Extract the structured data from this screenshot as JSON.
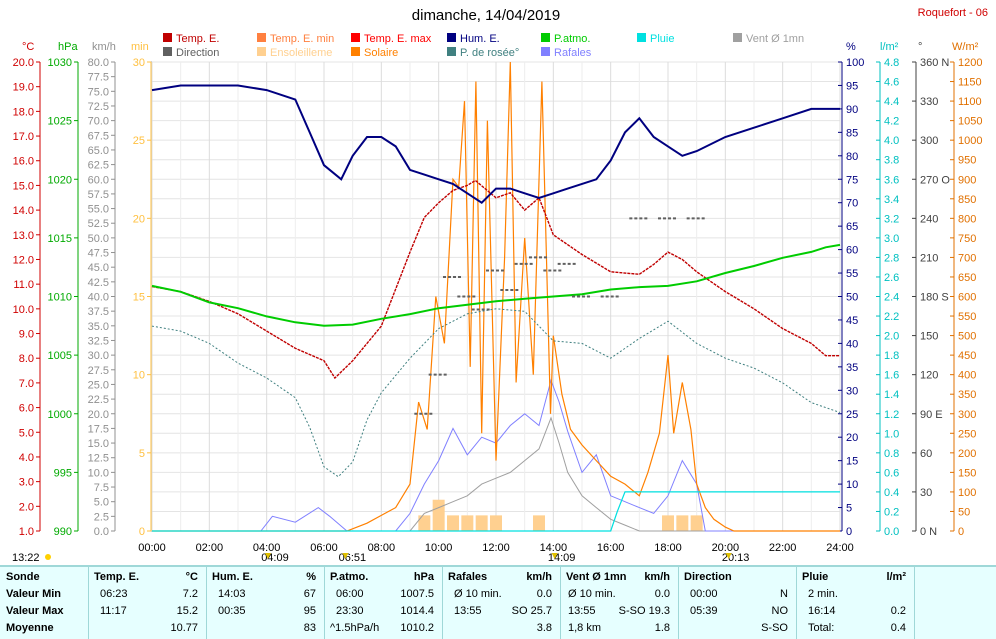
{
  "header": {
    "title": "dimanche, 14/04/2019",
    "station": "Roquefort - 06"
  },
  "legend": [
    {
      "label": "Temp. E.",
      "color": "#c00000",
      "col": 0,
      "row": 0
    },
    {
      "label": "Temp. E. min",
      "color": "#ff8040",
      "col": 1,
      "row": 0
    },
    {
      "label": "Temp. E. max",
      "color": "#ff0000",
      "col": 2,
      "row": 0
    },
    {
      "label": "Hum. E.",
      "color": "#000080",
      "col": 3,
      "row": 0
    },
    {
      "label": "P.atmo.",
      "color": "#00cc00",
      "col": 4,
      "row": 0
    },
    {
      "label": "Pluie",
      "color": "#00e0e0",
      "col": 5,
      "row": 0
    },
    {
      "label": "Vent Ø 1mn",
      "color": "#a0a0a0",
      "col": 6,
      "row": 0
    },
    {
      "label": "Direction",
      "color": "#606060",
      "col": 0,
      "row": 1
    },
    {
      "label": "Ensoleilleme",
      "color": "#ffd090",
      "col": 1,
      "row": 1
    },
    {
      "label": "Solaire",
      "color": "#ff8000",
      "col": 2,
      "row": 1
    },
    {
      "label": "P. de rosée°",
      "color": "#408080",
      "col": 3,
      "row": 1
    },
    {
      "label": "Rafales",
      "color": "#8080ff",
      "col": 4,
      "row": 1
    }
  ],
  "axes": {
    "celsius": {
      "unit": "°C",
      "ticks": [
        "20.0",
        "19.0",
        "18.0",
        "17.0",
        "16.0",
        "15.0",
        "14.0",
        "13.0",
        "12.0",
        "11.0",
        "10.0",
        "9.0",
        "8.0",
        "7.0",
        "6.0",
        "5.0",
        "4.0",
        "3.0",
        "2.0",
        "1.0"
      ],
      "color": "#d00000"
    },
    "hpa": {
      "unit": "hPa",
      "ticks": [
        "1030",
        "1025",
        "1020",
        "1015",
        "1010",
        "1005",
        "1000",
        "995",
        "990"
      ],
      "color": "#00aa00"
    },
    "kmh": {
      "unit": "km/h",
      "ticks": [
        "80.0",
        "77.5",
        "75.0",
        "72.5",
        "70.0",
        "67.5",
        "65.0",
        "62.5",
        "60.0",
        "57.5",
        "55.0",
        "52.5",
        "50.0",
        "47.5",
        "45.0",
        "42.5",
        "40.0",
        "37.5",
        "35.0",
        "32.5",
        "30.0",
        "27.5",
        "25.0",
        "22.5",
        "20.0",
        "17.5",
        "15.0",
        "12.5",
        "10.0",
        "7.5",
        "5.0",
        "2.5",
        "0.0"
      ],
      "color": "#909090"
    },
    "min": {
      "unit": "min",
      "ticks": [
        "30",
        "25",
        "20",
        "15",
        "10",
        "5",
        "0"
      ],
      "color": "#ffc040"
    },
    "percent": {
      "unit": "%",
      "ticks": [
        "100",
        "95",
        "90",
        "85",
        "80",
        "75",
        "70",
        "65",
        "60",
        "55",
        "50",
        "45",
        "40",
        "35",
        "30",
        "25",
        "20",
        "15",
        "10",
        "5",
        "0"
      ],
      "color": "#000080"
    },
    "rain": {
      "unit": "l/m²",
      "ticks": [
        "4.8",
        "4.6",
        "4.4",
        "4.2",
        "4.0",
        "3.8",
        "3.6",
        "3.4",
        "3.2",
        "3.0",
        "2.8",
        "2.6",
        "2.4",
        "2.2",
        "2.0",
        "1.8",
        "1.6",
        "1.4",
        "1.2",
        "1.0",
        "0.8",
        "0.6",
        "0.4",
        "0.2",
        "0.0"
      ],
      "color": "#00c0c0"
    },
    "direction": {
      "unit": "°",
      "ticks": [
        "360 N",
        "330",
        "300",
        "270 O",
        "240",
        "210",
        "180 S",
        "150",
        "120",
        "90 E",
        "60",
        "30",
        "0 N"
      ],
      "color": "#404040"
    },
    "solar": {
      "unit": "W/m²",
      "ticks": [
        "1200",
        "1150",
        "1100",
        "1050",
        "1000",
        "950",
        "900",
        "850",
        "800",
        "750",
        "700",
        "650",
        "600",
        "550",
        "500",
        "450",
        "400",
        "350",
        "300",
        "250",
        "200",
        "150",
        "100",
        "50",
        "0"
      ],
      "color": "#e07000"
    },
    "time": {
      "ticks": [
        "00:00",
        "02:00",
        "04:00",
        "06:00",
        "08:00",
        "10:00",
        "12:00",
        "14:00",
        "16:00",
        "18:00",
        "20:00",
        "22:00",
        "24:00"
      ]
    }
  },
  "sun": {
    "sunrise": "13:22",
    "moonset": "04:09",
    "dawn": "06:51",
    "solar_noon": "14:09",
    "sunset": "20:13"
  },
  "chart_data": {
    "type": "line",
    "title": "dimanche, 14/04/2019",
    "x_unit": "hours",
    "xlim": [
      0,
      24
    ],
    "series": [
      {
        "name": "Temp. E.",
        "unit": "°C",
        "color": "#c00000",
        "x": [
          0,
          1,
          2,
          3,
          4,
          5,
          6,
          6.38,
          7,
          8,
          9,
          9.5,
          10,
          10.5,
          11,
          11.28,
          12,
          12.5,
          13,
          13.5,
          14,
          14.5,
          15,
          16,
          17,
          17.5,
          18,
          18.5,
          19,
          20,
          21,
          22,
          23,
          23.5,
          24
        ],
        "y": [
          10.9,
          10.7,
          10.3,
          9.8,
          9.1,
          8.4,
          7.9,
          7.2,
          7.9,
          9.3,
          12.3,
          13.7,
          14.3,
          14.8,
          15.0,
          15.2,
          14.5,
          14.7,
          14.0,
          14.5,
          13.0,
          12.6,
          12.2,
          11.5,
          11.4,
          11.8,
          12.3,
          12.0,
          11.5,
          10.7,
          10.0,
          9.2,
          8.6,
          8.1,
          8.1
        ]
      },
      {
        "name": "Hum. E.",
        "unit": "%",
        "color": "#000080",
        "x": [
          0,
          1,
          2,
          3,
          4,
          5,
          5.5,
          6,
          6.6,
          7,
          7.5,
          8,
          8.5,
          9,
          9.5,
          10,
          10.5,
          11,
          11.5,
          12,
          12.5,
          13,
          13.5,
          14,
          14.5,
          15,
          15.5,
          16,
          16.5,
          17,
          17.5,
          18,
          18.5,
          19,
          20,
          21,
          22,
          23,
          24
        ],
        "y": [
          94,
          95,
          95,
          95,
          94,
          92,
          85,
          78,
          75,
          80,
          84,
          84,
          82,
          77,
          76,
          75,
          74,
          72,
          70,
          73,
          73,
          72,
          71,
          72,
          73,
          74,
          75,
          79,
          85,
          88,
          84,
          82,
          80,
          81,
          84,
          86,
          88,
          90,
          90
        ]
      },
      {
        "name": "P.atmo.",
        "unit": "hPa",
        "color": "#00cc00",
        "x": [
          0,
          1,
          2,
          3,
          4,
          5,
          6,
          7,
          8,
          9,
          10,
          11,
          12,
          13,
          14,
          15,
          16,
          17,
          18,
          19,
          20,
          21,
          22,
          23,
          23.5,
          24
        ],
        "y": [
          1010.9,
          1010.4,
          1009.5,
          1009.0,
          1008.3,
          1007.8,
          1007.5,
          1007.6,
          1008.1,
          1008.5,
          1009.0,
          1009.3,
          1009.6,
          1009.8,
          1010.0,
          1010.2,
          1010.6,
          1010.8,
          1010.9,
          1011.3,
          1012.0,
          1012.6,
          1013.3,
          1013.8,
          1014.2,
          1014.4
        ]
      },
      {
        "name": "P. de rosée°",
        "unit": "°C",
        "color": "#408080",
        "x": [
          0,
          1,
          2,
          3,
          4,
          5,
          5.5,
          6,
          6.5,
          7,
          7.5,
          8,
          9,
          10,
          11,
          12,
          13,
          14,
          15,
          16,
          17,
          18,
          19,
          20,
          21,
          22,
          23,
          24
        ],
        "y": [
          9.3,
          9.1,
          8.6,
          7.8,
          7.2,
          6.4,
          5.2,
          3.6,
          3.2,
          3.8,
          5.5,
          6.6,
          8.0,
          9.2,
          9.8,
          10.0,
          9.9,
          8.7,
          8.6,
          8.0,
          8.8,
          9.5,
          8.6,
          8.0,
          7.6,
          7.0,
          6.2,
          5.8
        ]
      },
      {
        "name": "Solaire",
        "unit": "W/m²",
        "color": "#ff8000",
        "x": [
          0,
          6.8,
          7.5,
          8,
          8.5,
          9,
          9.3,
          9.6,
          9.9,
          10.2,
          10.5,
          10.7,
          10.9,
          11.1,
          11.3,
          11.5,
          11.7,
          12.0,
          12.3,
          12.5,
          12.7,
          13.0,
          13.3,
          13.6,
          13.9,
          14.0,
          14.3,
          14.6,
          15,
          15.5,
          16,
          16.5,
          17,
          17.3,
          17.7,
          18,
          18.2,
          18.5,
          18.8,
          19.0,
          19.3,
          19.6,
          20,
          20.3,
          24
        ],
        "y": [
          0,
          0,
          20,
          40,
          60,
          120,
          330,
          260,
          600,
          480,
          900,
          880,
          1100,
          420,
          1150,
          250,
          1050,
          180,
          700,
          1200,
          380,
          750,
          400,
          1150,
          300,
          500,
          350,
          260,
          220,
          180,
          140,
          120,
          90,
          150,
          250,
          450,
          250,
          380,
          260,
          120,
          60,
          30,
          10,
          0,
          0
        ]
      },
      {
        "name": "Rafales",
        "unit": "km/h",
        "color": "#8080ff",
        "x": [
          0,
          3.8,
          4.2,
          5,
          5.8,
          6.2,
          6.8,
          7.5,
          8.5,
          9,
          9.5,
          10,
          10.5,
          11,
          11.5,
          12,
          12.5,
          13,
          13.5,
          13.92,
          14.2,
          14.5,
          15,
          15.5,
          16,
          16.5,
          17,
          17.5,
          18,
          18.5,
          19,
          19.3,
          24
        ],
        "y": [
          0,
          0,
          2.5,
          1.5,
          4,
          2.5,
          0,
          0,
          0,
          3,
          8,
          12,
          17.5,
          13,
          16,
          15,
          18,
          20,
          18,
          25.7,
          22,
          17,
          10,
          13,
          6,
          5,
          4,
          3,
          6,
          12,
          8,
          0,
          0
        ]
      },
      {
        "name": "Vent Ø 1mn",
        "unit": "km/h",
        "color": "#a0a0a0",
        "x": [
          0,
          9,
          9.5,
          10,
          10.5,
          11,
          11.5,
          12,
          12.5,
          13,
          13.5,
          13.92,
          14.2,
          14.5,
          15,
          15.5,
          16,
          16.5,
          17,
          24
        ],
        "y": [
          0,
          0,
          3,
          4,
          5,
          6,
          8,
          9,
          10,
          12,
          14,
          19.3,
          15,
          10,
          6,
          4,
          2,
          1,
          0,
          0
        ]
      },
      {
        "name": "Pluie",
        "unit": "l/m²",
        "color": "#00e0e0",
        "x": [
          0,
          16.0,
          16.23,
          16.5,
          24
        ],
        "y": [
          0,
          0,
          0.2,
          0.4,
          0.4
        ]
      },
      {
        "name": "Ensoleilleme",
        "unit": "min",
        "color": "#ffd090",
        "x": [
          0,
          9.5,
          10,
          10.5,
          11,
          11.5,
          12,
          12.5,
          13,
          13.5,
          14,
          16.5,
          17,
          17.5,
          18,
          18.5,
          19,
          24
        ],
        "y": [
          0,
          1,
          2,
          1,
          1,
          1,
          1,
          0,
          0,
          1,
          0,
          0,
          0,
          0,
          1,
          1,
          1,
          0
        ]
      },
      {
        "name": "Direction",
        "unit": "°",
        "color": "#606060",
        "x": [
          9.5,
          10,
          10.5,
          11,
          11.5,
          12,
          12.5,
          13,
          13.5,
          14,
          14.5,
          15,
          16,
          17,
          18,
          19
        ],
        "y": [
          90,
          120,
          195,
          180,
          170,
          200,
          185,
          205,
          210,
          200,
          205,
          180,
          180,
          240,
          240,
          240
        ]
      }
    ]
  },
  "summary": {
    "headers": [
      "Sonde",
      "Temp. E.",
      "°C",
      "Hum. E.",
      "%",
      "P.atmo.",
      "hPa",
      "Rafales",
      "km/h",
      "Vent Ø 1mn",
      "km/h",
      "Direction",
      "Pluie",
      "l/m²"
    ],
    "rows": [
      {
        "label": "Valeur Min",
        "temp_time": "06:23",
        "temp_val": "7.2",
        "hum_time": "14:03",
        "hum_val": "67",
        "pres_time": "06:00",
        "pres_val": "1007.5",
        "gust_time": "Ø 10 min.",
        "gust_val": "0.0",
        "wind_time": "Ø 10 min.",
        "wind_val": "0.0",
        "dir_time": "00:00",
        "dir_val": "N",
        "rain_time": "2 min.",
        "rain_val": ""
      },
      {
        "label": "Valeur Max",
        "temp_time": "11:17",
        "temp_val": "15.2",
        "hum_time": "00:35",
        "hum_val": "95",
        "pres_time": "23:30",
        "pres_val": "1014.4",
        "gust_time": "13:55",
        "gust_val": "SO 25.7",
        "wind_time": "13:55",
        "wind_val": "S-SO 19.3",
        "dir_time": "05:39",
        "dir_val": "NO",
        "rain_time": "16:14",
        "rain_val": "0.2"
      },
      {
        "label": "Moyenne",
        "temp_time": "",
        "temp_val": "10.77",
        "hum_time": "",
        "hum_val": "83",
        "pres_time": "^1.5hPa/h",
        "pres_val": "1010.2",
        "gust_time": "",
        "gust_val": "3.8",
        "wind_time": "1,8 km",
        "wind_val": "1.8",
        "dir_time": "",
        "dir_val": "S-SO",
        "rain_time": "Total:",
        "rain_val": "0.4"
      }
    ]
  }
}
